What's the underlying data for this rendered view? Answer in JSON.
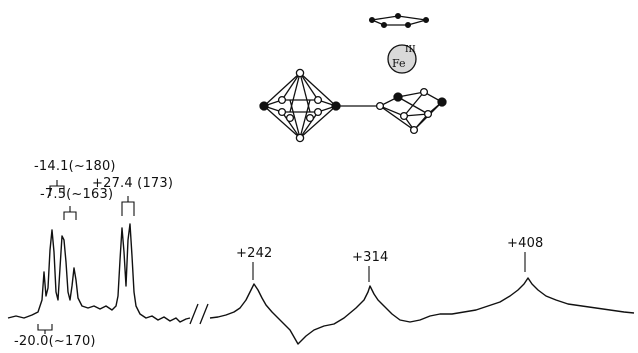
{
  "colors": {
    "ink": "#111111",
    "background": "#ffffff",
    "metal_fill": "#d9d9d9"
  },
  "structure": {
    "metal": "Fe",
    "oxidation_state": "III"
  },
  "peaks": {
    "p1": "-14.1(~180)",
    "p2": "-7.5(~163)",
    "p3": "+27.4 (173)",
    "p4": "+242",
    "p5": "+314",
    "p6": "+408",
    "p7": "-20.0(~170)"
  }
}
